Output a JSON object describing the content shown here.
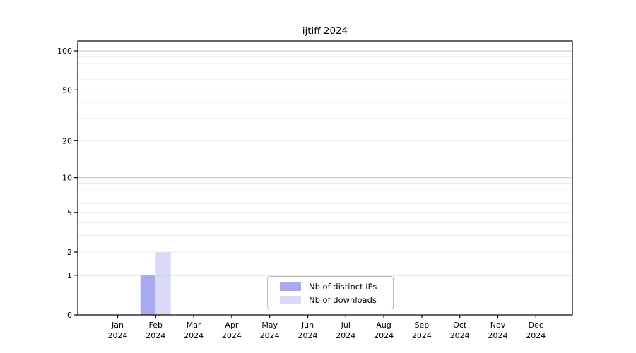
{
  "chart_data": {
    "type": "bar",
    "title": "ijtiff 2024",
    "scale": "log1p",
    "categories": [
      {
        "month": "Jan",
        "year": "2024"
      },
      {
        "month": "Feb",
        "year": "2024"
      },
      {
        "month": "Mar",
        "year": "2024"
      },
      {
        "month": "Apr",
        "year": "2024"
      },
      {
        "month": "May",
        "year": "2024"
      },
      {
        "month": "Jun",
        "year": "2024"
      },
      {
        "month": "Jul",
        "year": "2024"
      },
      {
        "month": "Aug",
        "year": "2024"
      },
      {
        "month": "Sep",
        "year": "2024"
      },
      {
        "month": "Oct",
        "year": "2024"
      },
      {
        "month": "Nov",
        "year": "2024"
      },
      {
        "month": "Dec",
        "year": "2024"
      }
    ],
    "series": [
      {
        "name": "Nb of distinct IPs",
        "color": "#a9a9ef",
        "values": [
          0,
          1,
          0,
          0,
          0,
          0,
          0,
          0,
          0,
          0,
          0,
          0
        ]
      },
      {
        "name": "Nb of downloads",
        "color": "#dadaf8",
        "values": [
          0,
          2,
          0,
          0,
          0,
          0,
          0,
          0,
          0,
          0,
          0,
          0
        ]
      }
    ],
    "yticks": [
      0,
      1,
      2,
      5,
      10,
      20,
      50,
      100
    ],
    "ylim": [
      0,
      100
    ],
    "xlabel": "",
    "ylabel": "",
    "grid": {
      "on": true,
      "minor_color": "#ececec",
      "major_color": "#c2c2c2",
      "major_values": [
        1,
        10,
        100
      ]
    },
    "legend_position": "bottom-center",
    "axis_color": "#000000",
    "background_color": "#ffffff"
  }
}
